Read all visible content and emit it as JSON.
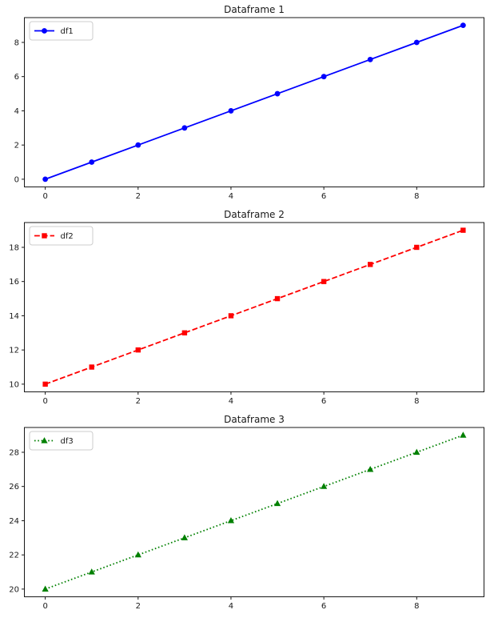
{
  "figure": {
    "background_color": "#ffffff",
    "text_color": "#1a1a1a",
    "spine_color": "#000000",
    "legend_border_color": "#cccccc",
    "legend_background_color": "#ffffff"
  },
  "chart_data": [
    {
      "type": "line",
      "title": "Dataframe 1",
      "x": [
        0,
        1,
        2,
        3,
        4,
        5,
        6,
        7,
        8,
        9
      ],
      "series": [
        {
          "name": "df1",
          "values": [
            0,
            1,
            2,
            3,
            4,
            5,
            6,
            7,
            8,
            9
          ],
          "color": "#0000ff",
          "linestyle": "solid",
          "marker": "circle"
        }
      ],
      "xlim": [
        -0.45,
        9.45
      ],
      "ylim": [
        -0.45,
        9.45
      ],
      "x_ticks": [
        0,
        2,
        4,
        6,
        8
      ],
      "y_ticks": [
        0,
        2,
        4,
        6,
        8
      ],
      "xlabel": "",
      "ylabel": "",
      "grid": false,
      "legend": {
        "position": "upper-left",
        "labels": [
          "df1"
        ]
      }
    },
    {
      "type": "line",
      "title": "Dataframe 2",
      "x": [
        0,
        1,
        2,
        3,
        4,
        5,
        6,
        7,
        8,
        9
      ],
      "series": [
        {
          "name": "df2",
          "values": [
            10,
            11,
            12,
            13,
            14,
            15,
            16,
            17,
            18,
            19
          ],
          "color": "#ff0000",
          "linestyle": "dashed",
          "marker": "square"
        }
      ],
      "xlim": [
        -0.45,
        9.45
      ],
      "ylim": [
        9.55,
        19.45
      ],
      "x_ticks": [
        0,
        2,
        4,
        6,
        8
      ],
      "y_ticks": [
        10,
        12,
        14,
        16,
        18
      ],
      "xlabel": "",
      "ylabel": "",
      "grid": false,
      "legend": {
        "position": "upper-left",
        "labels": [
          "df2"
        ]
      }
    },
    {
      "type": "line",
      "title": "Dataframe 3",
      "x": [
        0,
        1,
        2,
        3,
        4,
        5,
        6,
        7,
        8,
        9
      ],
      "series": [
        {
          "name": "df3",
          "values": [
            20,
            21,
            22,
            23,
            24,
            25,
            26,
            27,
            28,
            29
          ],
          "color": "#008000",
          "linestyle": "dotted",
          "marker": "triangle"
        }
      ],
      "xlim": [
        -0.45,
        9.45
      ],
      "ylim": [
        19.55,
        29.45
      ],
      "x_ticks": [
        0,
        2,
        4,
        6,
        8
      ],
      "y_ticks": [
        20,
        22,
        24,
        26,
        28
      ],
      "xlabel": "",
      "ylabel": "",
      "grid": false,
      "legend": {
        "position": "upper-left",
        "labels": [
          "df3"
        ]
      }
    }
  ]
}
